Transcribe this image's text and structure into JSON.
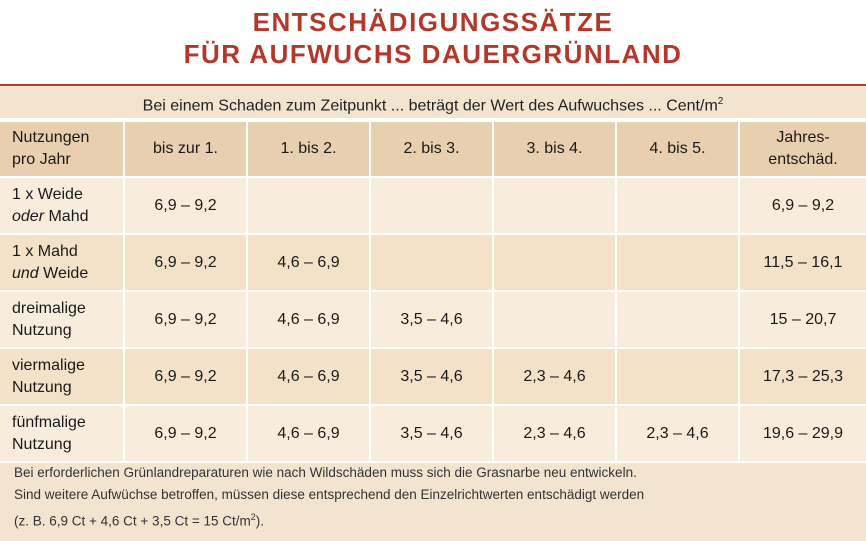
{
  "title": {
    "line1": "ENTSCHÄDIGUNGSSÄTZE",
    "line2": "FÜR AUFWUCHS DAUERGRÜNLAND"
  },
  "subheader": {
    "text": "Bei einem Schaden zum Zeitpunkt ... beträgt der Wert des Aufwuchses ... Cent/m",
    "sup": "2"
  },
  "columns": {
    "c0_line1": "Nutzungen",
    "c0_line2": "pro Jahr",
    "c1": "bis zur 1.",
    "c2": "1. bis 2.",
    "c3": "2. bis 3.",
    "c4": "3. bis 4.",
    "c5": "4. bis 5.",
    "c6_line1": "Jahres-",
    "c6_line2": "entschäd."
  },
  "rows": [
    {
      "label_a": "1 x Weide",
      "label_b_em": "oder",
      "label_b": " Mahd",
      "v1": "6,9 – 9,2",
      "v2": "",
      "v3": "",
      "v4": "",
      "v5": "",
      "total": "6,9 – 9,2"
    },
    {
      "label_a": "1 x Mahd",
      "label_b_em": "und",
      "label_b": " Weide",
      "v1": "6,9 – 9,2",
      "v2": "4,6 – 6,9",
      "v3": "",
      "v4": "",
      "v5": "",
      "total": "11,5 – 16,1"
    },
    {
      "label_a": "dreimalige",
      "label_b_em": "",
      "label_b": "Nutzung",
      "v1": "6,9 – 9,2",
      "v2": "4,6 – 6,9",
      "v3": "3,5 – 4,6",
      "v4": "",
      "v5": "",
      "total": "15 – 20,7"
    },
    {
      "label_a": "viermalige",
      "label_b_em": "",
      "label_b": "Nutzung",
      "v1": "6,9 – 9,2",
      "v2": "4,6 – 6,9",
      "v3": "3,5 – 4,6",
      "v4": "2,3 – 4,6",
      "v5": "",
      "total": "17,3 – 25,3"
    },
    {
      "label_a": "fünfmalige",
      "label_b_em": "",
      "label_b": "Nutzung",
      "v1": "6,9 – 9,2",
      "v2": "4,6 – 6,9",
      "v3": "3,5 – 4,6",
      "v4": "2,3 – 4,6",
      "v5": "2,3 – 4,6",
      "total": "19,6 – 29,9"
    }
  ],
  "footnote": {
    "line1": "Bei erforderlichen Grünlandreparaturen wie nach Wildschäden muss sich die Grasnarbe neu entwickeln.",
    "line2": "Sind weitere Aufwüchse betroffen, müssen diese entsprechend den Einzelrichtwerten entschädigt werden",
    "line3": "(z. B. 6,9 Ct + 4,6 Ct + 3,5 Ct = 15 Ct/m",
    "line3_sup": "2",
    "line3_end": ")."
  }
}
